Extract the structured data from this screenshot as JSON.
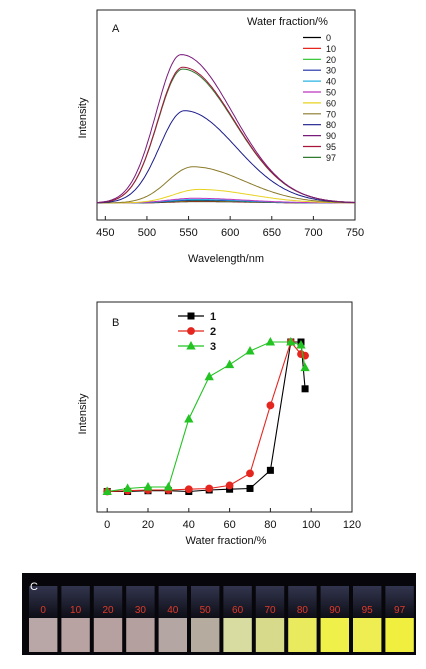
{
  "chart_data": [
    {
      "panel": "A",
      "type": "line",
      "xlabel": "Wavelength/nm",
      "ylabel": "Intensity",
      "xlim": [
        440,
        750
      ],
      "ylim": [
        0,
        100
      ],
      "xticks": [
        450,
        500,
        550,
        600,
        650,
        700,
        750
      ],
      "legend_title": "Water fraction/%",
      "legend_position": "top-right",
      "series": [
        {
          "name": "0",
          "color": "#000000",
          "peak": 0.8,
          "peak_x": 560
        },
        {
          "name": "10",
          "color": "#e5261f",
          "peak": 1.0,
          "peak_x": 560
        },
        {
          "name": "20",
          "color": "#22c322",
          "peak": 1.3,
          "peak_x": 558
        },
        {
          "name": "30",
          "color": "#1b2ca8",
          "peak": 1.6,
          "peak_x": 558
        },
        {
          "name": "40",
          "color": "#2ab3e6",
          "peak": 2.0,
          "peak_x": 556
        },
        {
          "name": "50",
          "color": "#c034c0",
          "peak": 2.6,
          "peak_x": 556
        },
        {
          "name": "60",
          "color": "#e8d21e",
          "peak": 7.5,
          "peak_x": 562
        },
        {
          "name": "70",
          "color": "#8a7a2a",
          "peak": 20,
          "peak_x": 555
        },
        {
          "name": "80",
          "color": "#1a1a8c",
          "peak": 51,
          "peak_x": 545
        },
        {
          "name": "90",
          "color": "#7a1a7a",
          "peak": 82,
          "peak_x": 541
        },
        {
          "name": "95",
          "color": "#a8143c",
          "peak": 75,
          "peak_x": 543
        },
        {
          "name": "97",
          "color": "#2e7a2e",
          "peak": 74,
          "peak_x": 543
        }
      ]
    },
    {
      "panel": "B",
      "type": "line",
      "xlabel": "Water fraction/%",
      "ylabel": "Intensity",
      "xlim": [
        -5,
        120
      ],
      "ylim": [
        0,
        100
      ],
      "xticks": [
        0,
        20,
        40,
        60,
        80,
        100,
        120
      ],
      "legend_position": "top-left",
      "series": [
        {
          "name": "1",
          "color": "#000000",
          "marker": "square",
          "x": [
            0,
            10,
            20,
            30,
            40,
            50,
            60,
            70,
            80,
            90,
            95,
            97
          ],
          "y": [
            1,
            1,
            1.5,
            1.5,
            1,
            2,
            2.5,
            3,
            15,
            100,
            100,
            69
          ]
        },
        {
          "name": "2",
          "color": "#e5261f",
          "marker": "circle",
          "x": [
            0,
            10,
            20,
            30,
            40,
            50,
            60,
            70,
            80,
            90,
            95,
            97
          ],
          "y": [
            1,
            1.5,
            2,
            2,
            2.5,
            3,
            5,
            13,
            58,
            100,
            92,
            91
          ]
        },
        {
          "name": "3",
          "color": "#22c322",
          "marker": "triangle",
          "x": [
            0,
            10,
            20,
            30,
            40,
            50,
            60,
            70,
            80,
            90,
            95,
            97
          ],
          "y": [
            1,
            3,
            4,
            4,
            49,
            77,
            85,
            94,
            100,
            100,
            98,
            83
          ]
        }
      ]
    }
  ],
  "photo": {
    "label": "C",
    "vials": [
      {
        "label": "0",
        "color": "#b9a6a6"
      },
      {
        "label": "10",
        "color": "#b8a2a2"
      },
      {
        "label": "20",
        "color": "#b6a1a0"
      },
      {
        "label": "30",
        "color": "#b3a09f"
      },
      {
        "label": "40",
        "color": "#b3a6a3"
      },
      {
        "label": "50",
        "color": "#b5ab9e"
      },
      {
        "label": "60",
        "color": "#d8dca0"
      },
      {
        "label": "70",
        "color": "#d6da8a"
      },
      {
        "label": "80",
        "color": "#e9ea5e"
      },
      {
        "label": "90",
        "color": "#f0f04a"
      },
      {
        "label": "95",
        "color": "#eeed52"
      },
      {
        "label": "97",
        "color": "#f0ee3e"
      }
    ]
  }
}
